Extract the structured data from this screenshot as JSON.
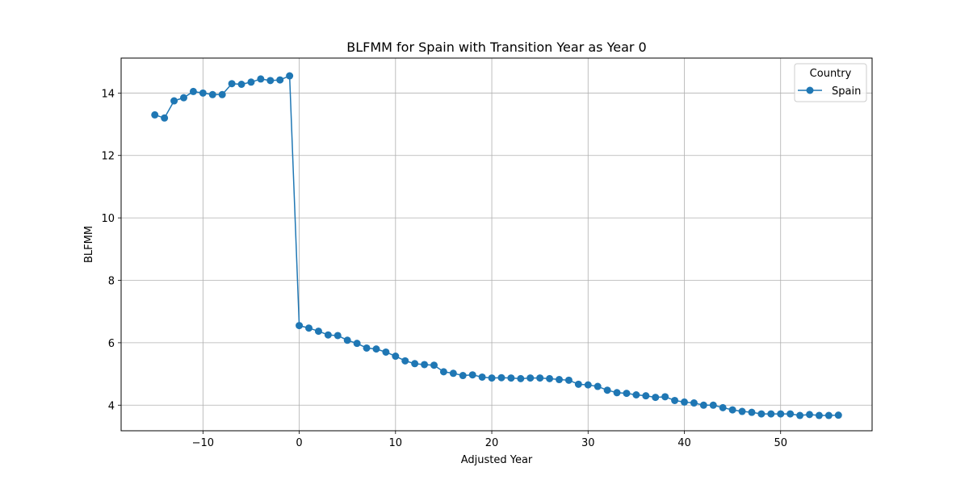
{
  "chart_data": {
    "type": "line",
    "title": "BLFMM for Spain with Transition Year as Year 0",
    "xlabel": "Adjusted Year",
    "ylabel": "BLFMM",
    "xlim": [
      -18.5,
      59.5
    ],
    "ylim": [
      3.18,
      15.12
    ],
    "xticks": [
      -10,
      0,
      10,
      20,
      30,
      40,
      50
    ],
    "xtick_labels": [
      "−10",
      "0",
      "10",
      "20",
      "30",
      "40",
      "50"
    ],
    "yticks": [
      4,
      6,
      8,
      10,
      12,
      14
    ],
    "ytick_labels": [
      "4",
      "6",
      "8",
      "10",
      "12",
      "14"
    ],
    "grid": true,
    "legend": {
      "title": "Country",
      "placement": "top-right"
    },
    "series": [
      {
        "name": "Spain",
        "color": "#1f77b4",
        "marker": "circle",
        "x": [
          -15,
          -14,
          -13,
          -12,
          -11,
          -10,
          -9,
          -8,
          -7,
          -6,
          -5,
          -4,
          -3,
          -2,
          -1,
          0,
          1,
          2,
          3,
          4,
          5,
          6,
          7,
          8,
          9,
          10,
          11,
          12,
          13,
          14,
          15,
          16,
          17,
          18,
          19,
          20,
          21,
          22,
          23,
          24,
          25,
          26,
          27,
          28,
          29,
          30,
          31,
          32,
          33,
          34,
          35,
          36,
          37,
          38,
          39,
          40,
          41,
          42,
          43,
          44,
          45,
          46,
          47,
          48,
          49,
          50,
          51,
          52,
          53,
          54,
          55,
          56
        ],
        "y": [
          13.3,
          13.2,
          13.75,
          13.85,
          14.05,
          14.0,
          13.95,
          13.95,
          14.3,
          14.28,
          14.35,
          14.45,
          14.4,
          14.42,
          14.55,
          6.55,
          6.47,
          6.37,
          6.25,
          6.23,
          6.08,
          5.98,
          5.83,
          5.8,
          5.7,
          5.57,
          5.42,
          5.33,
          5.3,
          5.28,
          5.07,
          5.02,
          4.95,
          4.97,
          4.9,
          4.87,
          4.88,
          4.87,
          4.85,
          4.87,
          4.87,
          4.85,
          4.82,
          4.8,
          4.67,
          4.65,
          4.6,
          4.48,
          4.4,
          4.38,
          4.33,
          4.3,
          4.25,
          4.27,
          4.15,
          4.1,
          4.07,
          4.0,
          4.0,
          3.92,
          3.85,
          3.8,
          3.77,
          3.72,
          3.72,
          3.72,
          3.72,
          3.67,
          3.7,
          3.67,
          3.67,
          3.68
        ]
      }
    ]
  }
}
